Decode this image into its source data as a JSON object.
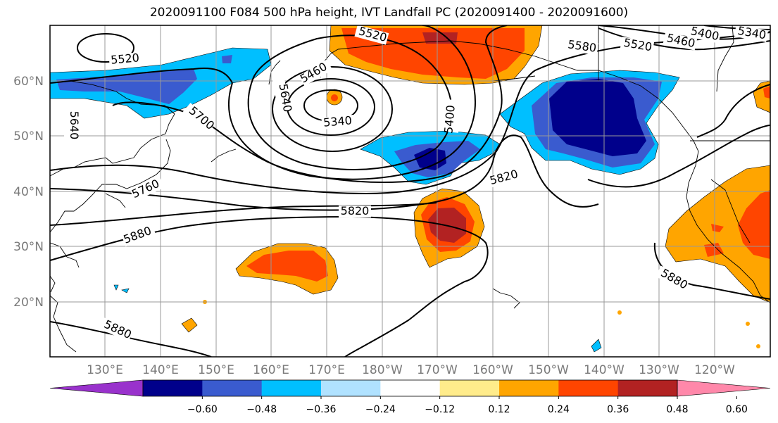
{
  "title": "2020091100 F084 500 hPa height, IVT Landfall PC (2020091400 - 2020091600)",
  "lat_labels": [
    "60°N",
    "50°N",
    "40°N",
    "30°N",
    "20°N"
  ],
  "lon_labels": [
    "130°E",
    "140°E",
    "150°E",
    "160°E",
    "170°E",
    "180°W",
    "170°W",
    "160°W",
    "150°W",
    "140°W",
    "130°W",
    "120°W"
  ],
  "contour_labels": [
    "5520",
    "5520",
    "5580",
    "5520",
    "5460",
    "5400",
    "5340",
    "5640",
    "5400",
    "5460",
    "5340",
    "5700",
    "5640",
    "5760",
    "5820",
    "5820",
    "5880",
    "5880",
    "5880"
  ],
  "colorbar": {
    "ticks": [
      "−0.60",
      "−0.48",
      "−0.36",
      "−0.24",
      "−0.12",
      "0.12",
      "0.24",
      "0.36",
      "0.48",
      "0.60"
    ],
    "colors": [
      "#9932cc",
      "#00008b",
      "#3a5bcf",
      "#00bfff",
      "#b0e2ff",
      "#ffffff",
      "#ffec8b",
      "#ffa500",
      "#ff4500",
      "#b22222",
      "#ff88aa"
    ]
  },
  "colors": {
    "frame": "#000000",
    "grid": "#999999",
    "contour": "#000000"
  }
}
